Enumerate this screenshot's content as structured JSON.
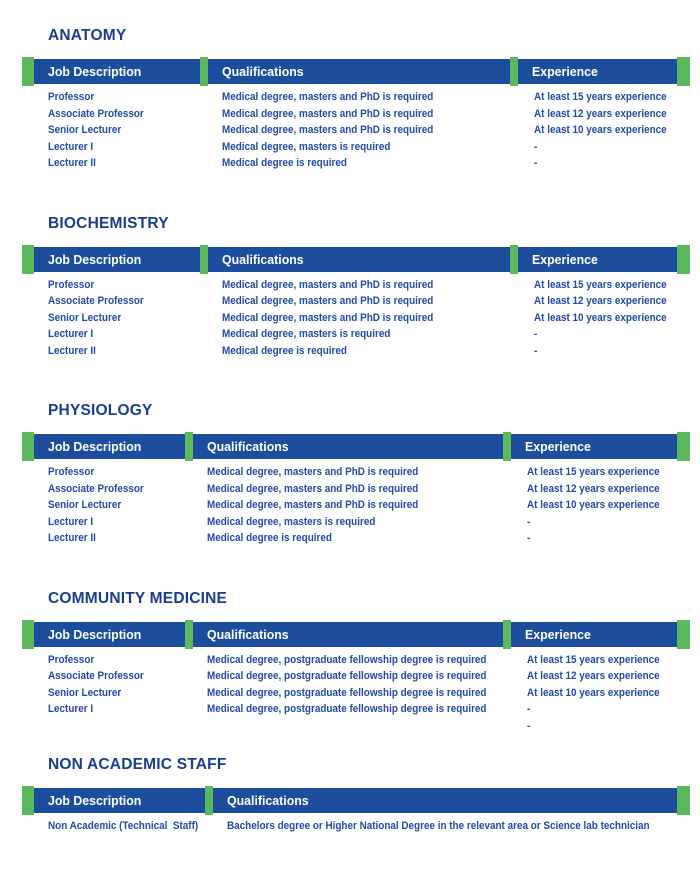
{
  "colors": {
    "header_bg": "#1d4e9e",
    "accent_green": "#5cb85c",
    "body_text": "#2449a6",
    "title_text": "#1c3c90",
    "header_text": "#ffffff",
    "page_bg": "#ffffff"
  },
  "sections": [
    {
      "title": "ANATOMY",
      "columns": [
        "Job Description",
        "Qualifications",
        "Experience"
      ],
      "rows": [
        {
          "job": "Professor",
          "qualification": "Medical degree, masters and PhD is required",
          "experience": "At least 15 years experience"
        },
        {
          "job": "Associate Professor",
          "qualification": "Medical degree, masters and PhD is required",
          "experience": "At least 12 years experience"
        },
        {
          "job": "Senior Lecturer",
          "qualification": "Medical degree, masters and PhD is required",
          "experience": "At least 10 years experience"
        },
        {
          "job": "Lecturer I",
          "qualification": "Medical degree, masters is required",
          "experience": "-"
        },
        {
          "job": "Lecturer II",
          "qualification": "Medical degree is required",
          "experience": "-"
        }
      ]
    },
    {
      "title": "BIOCHEMISTRY",
      "columns": [
        "Job Description",
        "Qualifications",
        "Experience"
      ],
      "rows": [
        {
          "job": "Professor",
          "qualification": "Medical degree, masters and PhD is required",
          "experience": "At least 15 years experience"
        },
        {
          "job": "Associate Professor",
          "qualification": "Medical degree, masters and PhD is required",
          "experience": "At least 12 years experience"
        },
        {
          "job": "Senior Lecturer",
          "qualification": "Medical degree, masters and PhD is required",
          "experience": "At least 10 years experience"
        },
        {
          "job": "Lecturer I",
          "qualification": "Medical degree, masters is required",
          "experience": "-"
        },
        {
          "job": "Lecturer II",
          "qualification": "Medical degree is required",
          "experience": "-"
        }
      ]
    },
    {
      "title": "PHYSIOLOGY",
      "columns": [
        "Job Description",
        "Qualifications",
        "Experience"
      ],
      "rows": [
        {
          "job": "Professor",
          "qualification": "Medical degree, masters and PhD is required",
          "experience": "At least 15 years experience"
        },
        {
          "job": "Associate Professor",
          "qualification": "Medical degree, masters and PhD is required",
          "experience": "At least 12 years experience"
        },
        {
          "job": "Senior Lecturer",
          "qualification": "Medical degree, masters and PhD is required",
          "experience": "At least 10 years experience"
        },
        {
          "job": "Lecturer I",
          "qualification": "Medical degree, masters is required",
          "experience": "-"
        },
        {
          "job": "Lecturer II",
          "qualification": "Medical degree is required",
          "experience": "-"
        }
      ]
    },
    {
      "title": "COMMUNITY MEDICINE",
      "columns": [
        "Job Description",
        "Qualifications",
        "Experience"
      ],
      "rows": [
        {
          "job": "Professor",
          "qualification": "Medical degree, postgraduate fellowship degree is required",
          "experience": "At least 15 years experience"
        },
        {
          "job": "Associate Professor",
          "qualification": "Medical degree, postgraduate fellowship degree is required",
          "experience": "At least 12 years experience"
        },
        {
          "job": "Senior Lecturer",
          "qualification": "Medical degree, postgraduate fellowship degree is required",
          "experience": "At least 10 years experience"
        },
        {
          "job": "Lecturer I",
          "qualification": "Medical degree, postgraduate fellowship degree is required",
          "experience": "-"
        },
        {
          "job": "",
          "qualification": "",
          "experience": "-"
        }
      ]
    },
    {
      "title": "NON ACADEMIC STAFF",
      "columns": [
        "Job Description",
        "Qualifications"
      ],
      "rows": [
        {
          "job": "Non Academic (Technical  Staff)",
          "qualification": "Bachelors degree or Higher National Degree in the relevant area or Science lab technician"
        }
      ]
    }
  ]
}
